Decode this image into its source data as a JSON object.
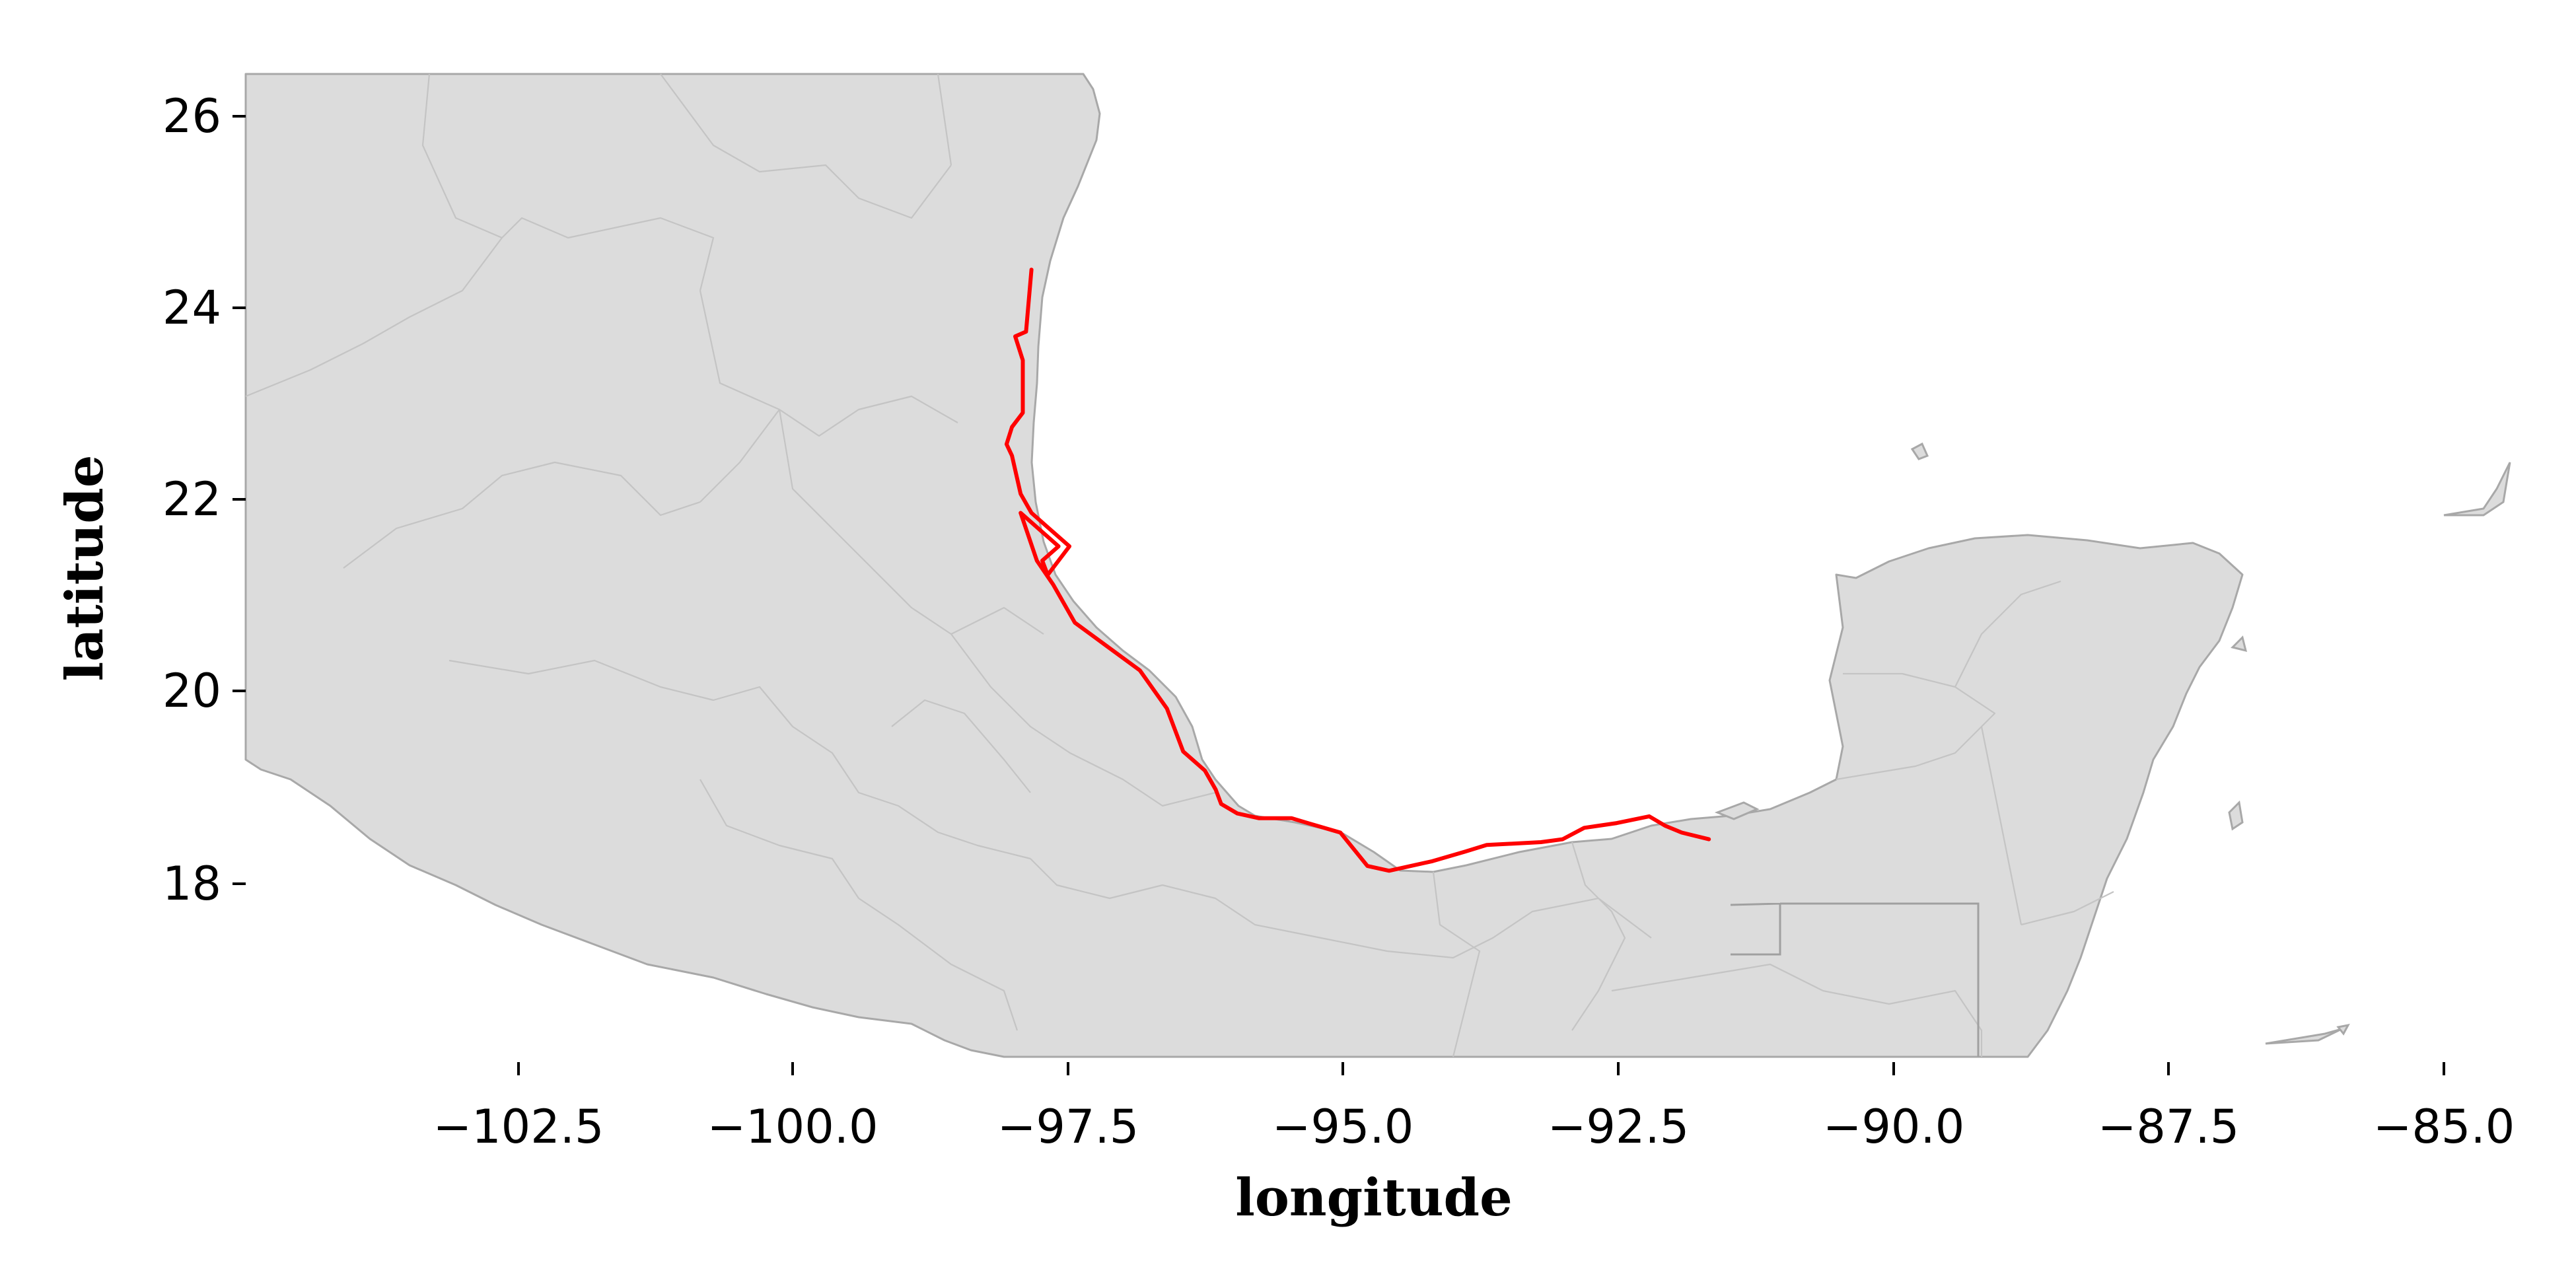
{
  "map": {
    "xlabel": "longitude",
    "ylabel": "latitude",
    "x_range": [
      -104.95,
      -84.15
    ],
    "y_range": [
      16.2,
      26.5
    ],
    "x_ticks": [
      "−102.5",
      "−100.0",
      "−97.5",
      "−95.0",
      "−92.5",
      "−90.0",
      "−87.5",
      "−85.0"
    ],
    "x_tick_values": [
      -102.5,
      -100.0,
      -97.5,
      -95.0,
      -92.5,
      -90.0,
      -87.5,
      -85.0
    ],
    "y_ticks": [
      "18",
      "20",
      "22",
      "24",
      "26"
    ],
    "y_tick_values": [
      18,
      20,
      22,
      24,
      26
    ],
    "colors": {
      "land": "#dcdcdc",
      "borders": "#a8a8a8",
      "route": "#ff0000"
    },
    "route": [
      [
        -97.7,
        24.45
      ],
      [
        -97.75,
        23.8
      ],
      [
        -97.85,
        23.75
      ],
      [
        -97.78,
        23.5
      ],
      [
        -97.78,
        23.2
      ],
      [
        -97.78,
        22.95
      ],
      [
        -97.88,
        22.8
      ],
      [
        -97.93,
        22.62
      ],
      [
        -97.88,
        22.5
      ],
      [
        -97.8,
        22.1
      ],
      [
        -97.7,
        21.9
      ],
      [
        -97.55,
        21.75
      ],
      [
        -97.35,
        21.55
      ],
      [
        -97.45,
        21.4
      ],
      [
        -97.55,
        21.25
      ],
      [
        -97.6,
        21.4
      ],
      [
        -97.45,
        21.55
      ],
      [
        -97.8,
        21.9
      ],
      [
        -97.65,
        21.4
      ],
      [
        -97.5,
        21.15
      ],
      [
        -97.3,
        20.75
      ],
      [
        -97.0,
        20.5
      ],
      [
        -96.7,
        20.25
      ],
      [
        -96.45,
        19.85
      ],
      [
        -96.3,
        19.4
      ],
      [
        -96.1,
        19.2
      ],
      [
        -96.0,
        19.0
      ],
      [
        -95.95,
        18.85
      ],
      [
        -95.8,
        18.75
      ],
      [
        -95.6,
        18.7
      ],
      [
        -95.3,
        18.7
      ],
      [
        -95.15,
        18.65
      ],
      [
        -94.85,
        18.55
      ],
      [
        -94.6,
        18.2
      ],
      [
        -94.4,
        18.15
      ],
      [
        -94.0,
        18.25
      ],
      [
        -93.7,
        18.35
      ],
      [
        -93.5,
        18.42
      ],
      [
        -93.0,
        18.45
      ],
      [
        -92.8,
        18.48
      ],
      [
        -92.6,
        18.6
      ],
      [
        -92.3,
        18.65
      ],
      [
        -92.0,
        18.72
      ],
      [
        -91.85,
        18.62
      ],
      [
        -91.7,
        18.55
      ],
      [
        -91.45,
        18.48
      ]
    ]
  }
}
